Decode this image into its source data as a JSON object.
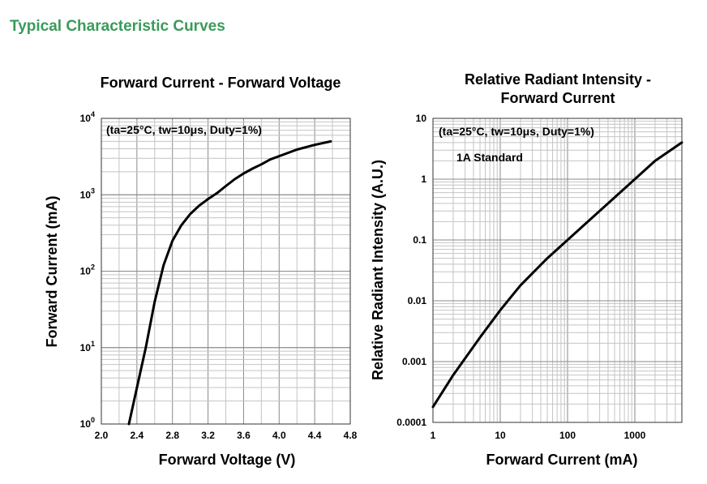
{
  "page": {
    "heading": "Typical Characteristic Curves",
    "heading_color": "#3a9a5a"
  },
  "chart_data": [
    {
      "type": "line",
      "title": "Forward Current - Forward Voltage",
      "xlabel": "Forward Voltage (V)",
      "ylabel": "Forward Current (mA)",
      "annotation": "(ta=25°C, tw=10μs, Duty=1%)",
      "xlim": [
        2.0,
        4.8
      ],
      "ylim": [
        1,
        10000
      ],
      "yscale": "log",
      "grid": true,
      "x_ticks": [
        "2.0",
        "2.4",
        "2.8",
        "3.2",
        "3.6",
        "4.0",
        "4.4",
        "4.8"
      ],
      "y_ticks": [
        {
          "base": "10",
          "exp": "0"
        },
        {
          "base": "10",
          "exp": "1"
        },
        {
          "base": "10",
          "exp": "2"
        },
        {
          "base": "10",
          "exp": "3"
        },
        {
          "base": "10",
          "exp": "4"
        }
      ],
      "series": [
        {
          "x": [
            2.31,
            2.4,
            2.5,
            2.6,
            2.7,
            2.8,
            2.9,
            3.0,
            3.1,
            3.2,
            3.3,
            3.4,
            3.5,
            3.6,
            3.7,
            3.8,
            3.9,
            4.0,
            4.2,
            4.4,
            4.58
          ],
          "y": [
            1,
            3,
            10,
            40,
            120,
            250,
            400,
            560,
            720,
            880,
            1050,
            1300,
            1600,
            1900,
            2200,
            2500,
            2900,
            3200,
            3900,
            4500,
            5000
          ]
        }
      ]
    },
    {
      "type": "line",
      "title": "Relative Radiant Intensity - Forward Current",
      "title_lines": [
        "Relative Radiant Intensity -",
        "Forward Current"
      ],
      "xlabel": "Forward Current (mA)",
      "ylabel": "Relative Radiant Intensity (A.U.)",
      "annotation": "(ta=25°C, tw=10μs, Duty=1%)",
      "annotation2": "1A Standard",
      "xscale": "log",
      "yscale": "log",
      "xlim": [
        1,
        5000
      ],
      "ylim": [
        0.0001,
        10
      ],
      "grid": true,
      "x_ticks": [
        "1",
        "10",
        "100",
        "1000"
      ],
      "y_ticks": [
        "0.0001",
        "0.001",
        "0.01",
        "0.1",
        "1",
        "10"
      ],
      "series": [
        {
          "x": [
            1,
            2,
            5,
            10,
            20,
            50,
            100,
            200,
            500,
            1000,
            2000,
            5000
          ],
          "y": [
            0.00018,
            0.0006,
            0.0025,
            0.007,
            0.018,
            0.05,
            0.1,
            0.2,
            0.5,
            1.0,
            2.0,
            4.0
          ]
        }
      ]
    }
  ]
}
